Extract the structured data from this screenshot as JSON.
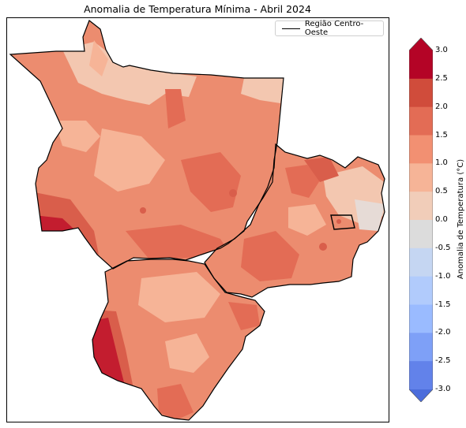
{
  "map": {
    "title": "Anomalia de Temperatura Mínima - Abril 2024",
    "legend_label": "Região Centro-Oeste",
    "colorbar": {
      "label": "Anomalia de Temperatura (°C)",
      "ticks": [
        "3.0",
        "2.5",
        "2.0",
        "1.5",
        "1.0",
        "0.5",
        "0.0",
        "-0.5",
        "-1.0",
        "-1.5",
        "-2.0",
        "-2.5",
        "-3.0"
      ],
      "colors": [
        "#b40426",
        "#d04c3b",
        "#e36c55",
        "#f29072",
        "#f6b497",
        "#f1cdb9",
        "#dcdcdc",
        "#c5d6f2",
        "#b1cbfc",
        "#9abbff",
        "#7ea0f7",
        "#6282ea",
        "#4c6ddb"
      ],
      "min": -3.0,
      "max": 3.0,
      "extend": "both"
    },
    "colors": {
      "dominant": "#ec8c6f",
      "warm_high": "#c31d2f",
      "warm_mid": "#d95e4b",
      "cool_low": "#f3c7b0",
      "neutral": "#e6dbd6",
      "border": "#000000"
    }
  }
}
